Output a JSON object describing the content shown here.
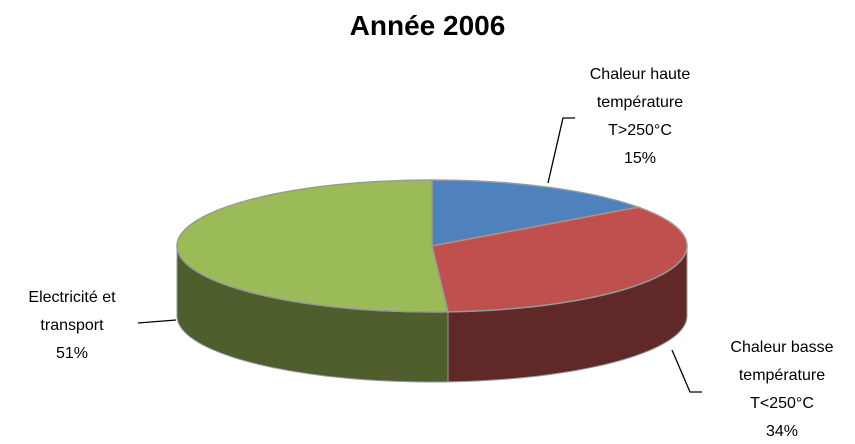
{
  "chart_data": {
    "type": "pie3d",
    "title": "Année 2006",
    "categories": [
      "Chaleur haute température T>250°C",
      "Chaleur basse température T<250°C",
      "Electricité et transport"
    ],
    "values": [
      15,
      34,
      51
    ],
    "value_labels": [
      "15%",
      "34%",
      "51%"
    ],
    "colors": [
      "#4f81bd",
      "#c0504d",
      "#9bbb59"
    ]
  }
}
